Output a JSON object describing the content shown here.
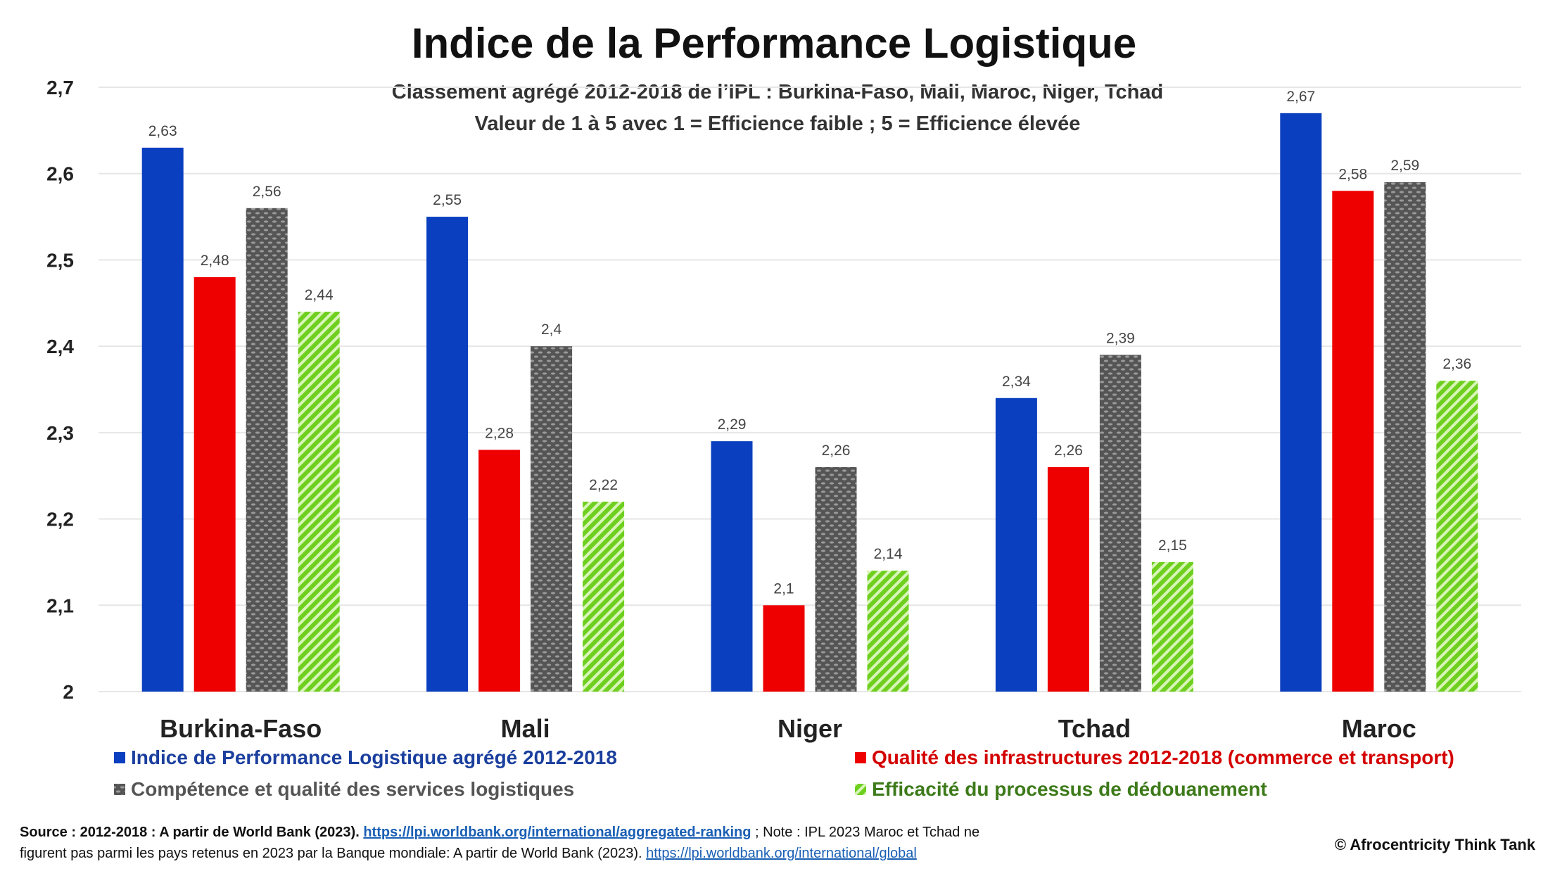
{
  "chart_data": {
    "type": "bar",
    "title": "Indice de la Performance Logistique",
    "subtitle_lines": [
      "Classement agrégé 2012-2018 de l’IPL : Burkina-Faso, Mali, Maroc, Niger, Tchad",
      "Valeur de 1 à 5 avec 1 = Efficience faible ; 5 = Efficience élevée"
    ],
    "categories": [
      "Burkina-Faso",
      "Mali",
      "Niger",
      "Tchad",
      "Maroc"
    ],
    "series": [
      {
        "name": "Indice de Performance Logistique agrégé 2012-2018",
        "color": "#0a3fbf",
        "legend_color": "#1b3f9e",
        "pattern": "solid",
        "values": [
          2.63,
          2.55,
          2.29,
          2.34,
          2.67
        ],
        "labels": [
          "2,63",
          "2,55",
          "2,29",
          "2,34",
          "2,67"
        ]
      },
      {
        "name": "Qualité des infrastructures 2012-2018 (commerce et transport)",
        "color": "#ee0000",
        "legend_color": "#d40000",
        "pattern": "solid",
        "values": [
          2.48,
          2.28,
          2.1,
          2.26,
          2.58
        ],
        "labels": [
          "2,48",
          "2,28",
          "2,1",
          "2,26",
          "2,58"
        ]
      },
      {
        "name": "Compétence et qualité des services logistiques",
        "color": "#555555",
        "legend_color": "#555555",
        "pattern": "dots",
        "values": [
          2.56,
          2.4,
          2.26,
          2.39,
          2.59
        ],
        "labels": [
          "2,56",
          "2,4",
          "2,26",
          "2,39",
          "2,59"
        ]
      },
      {
        "name": "Efficacité du processus de dédouanement",
        "color": "#7ed321",
        "legend_color": "#3d7a1a",
        "pattern": "stripes",
        "values": [
          2.44,
          2.22,
          2.14,
          2.15,
          2.36
        ],
        "labels": [
          "2,44",
          "2,22",
          "2,14",
          "2,15",
          "2,36"
        ]
      }
    ],
    "ylim": [
      2,
      2.7
    ],
    "yticks": [
      2,
      2.1,
      2.2,
      2.3,
      2.4,
      2.5,
      2.6,
      2.7
    ],
    "ytick_labels": [
      "2",
      "2,1",
      "2,2",
      "2,3",
      "2,4",
      "2,5",
      "2,6",
      "2,7"
    ],
    "xlabel": "",
    "ylabel": "",
    "grid": true,
    "legend_position": "bottom"
  },
  "footer": {
    "source_prefix": "Source : 2012-2018 : A partir de World Bank (2023).",
    "link1": "https://lpi.worldbank.org/international/aggregated-ranking",
    "note": " ;  Note : IPL 2023 Maroc et Tchad ne",
    "line2": "figurent pas parmi les pays retenus en 2023 par la Banque mondiale: A partir de World Bank (2023).",
    "link2": "https://lpi.worldbank.org/international/global",
    "copyright": "© Afrocentricity Think Tank"
  }
}
